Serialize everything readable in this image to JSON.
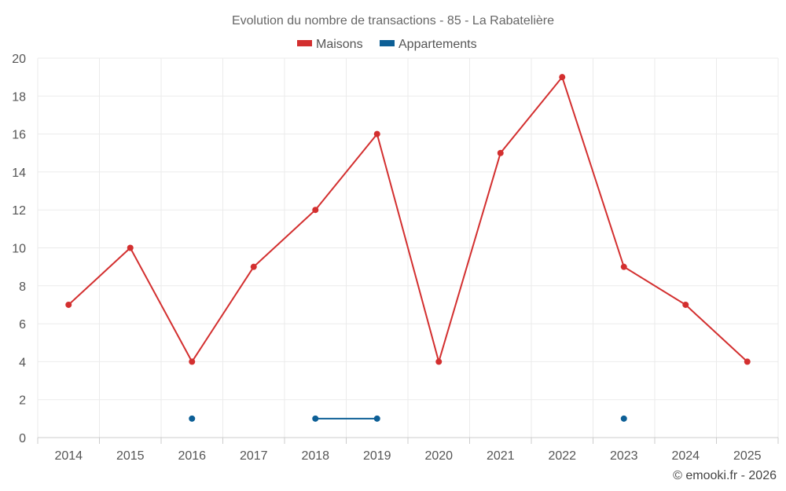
{
  "chart_data": {
    "type": "line",
    "title": "Evolution du nombre de transactions - 85 - La Rabatelière",
    "categories": [
      "2014",
      "2015",
      "2016",
      "2017",
      "2018",
      "2019",
      "2020",
      "2021",
      "2022",
      "2023",
      "2024",
      "2025"
    ],
    "ylim": [
      0,
      20
    ],
    "yticks": [
      0,
      2,
      4,
      6,
      8,
      10,
      12,
      14,
      16,
      18,
      20
    ],
    "grid": true,
    "legend_position": "top-center",
    "series": [
      {
        "name": "Maisons",
        "color": "#d32f2f",
        "values": [
          7,
          10,
          4,
          9,
          12,
          16,
          4,
          15,
          19,
          9,
          7,
          4
        ]
      },
      {
        "name": "Appartements",
        "color": "#0d5f96",
        "values": [
          null,
          null,
          1,
          null,
          1,
          1,
          null,
          null,
          null,
          1,
          null,
          null
        ]
      }
    ]
  },
  "credit": "© emooki.fr - 2026"
}
